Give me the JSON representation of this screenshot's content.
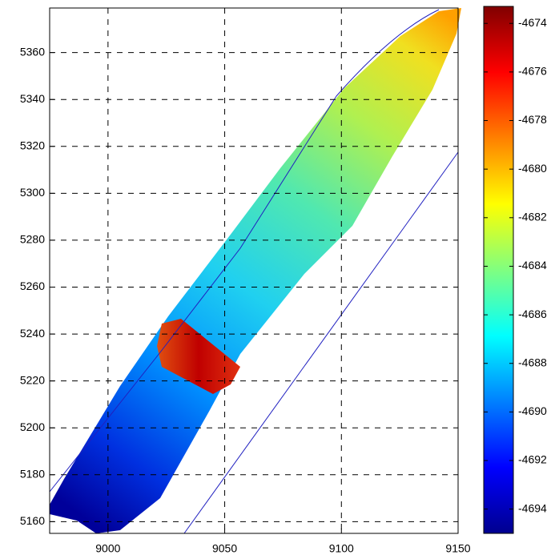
{
  "chart_data": {
    "type": "heatmap",
    "xlim": [
      8975,
      9150
    ],
    "xticks": [
      9000,
      9050,
      9100,
      9150
    ],
    "ylim": [
      5155,
      5379
    ],
    "yticks": [
      5160,
      5180,
      5200,
      5220,
      5240,
      5260,
      5280,
      5300,
      5320,
      5340,
      5360
    ],
    "grid": true,
    "colormap": "jet",
    "clim": [
      -4695,
      -4673.3
    ],
    "cticks": [
      -4694,
      -4692,
      -4690,
      -4688,
      -4686,
      -4684,
      -4682,
      -4680,
      -4678,
      -4676,
      -4674
    ]
  }
}
